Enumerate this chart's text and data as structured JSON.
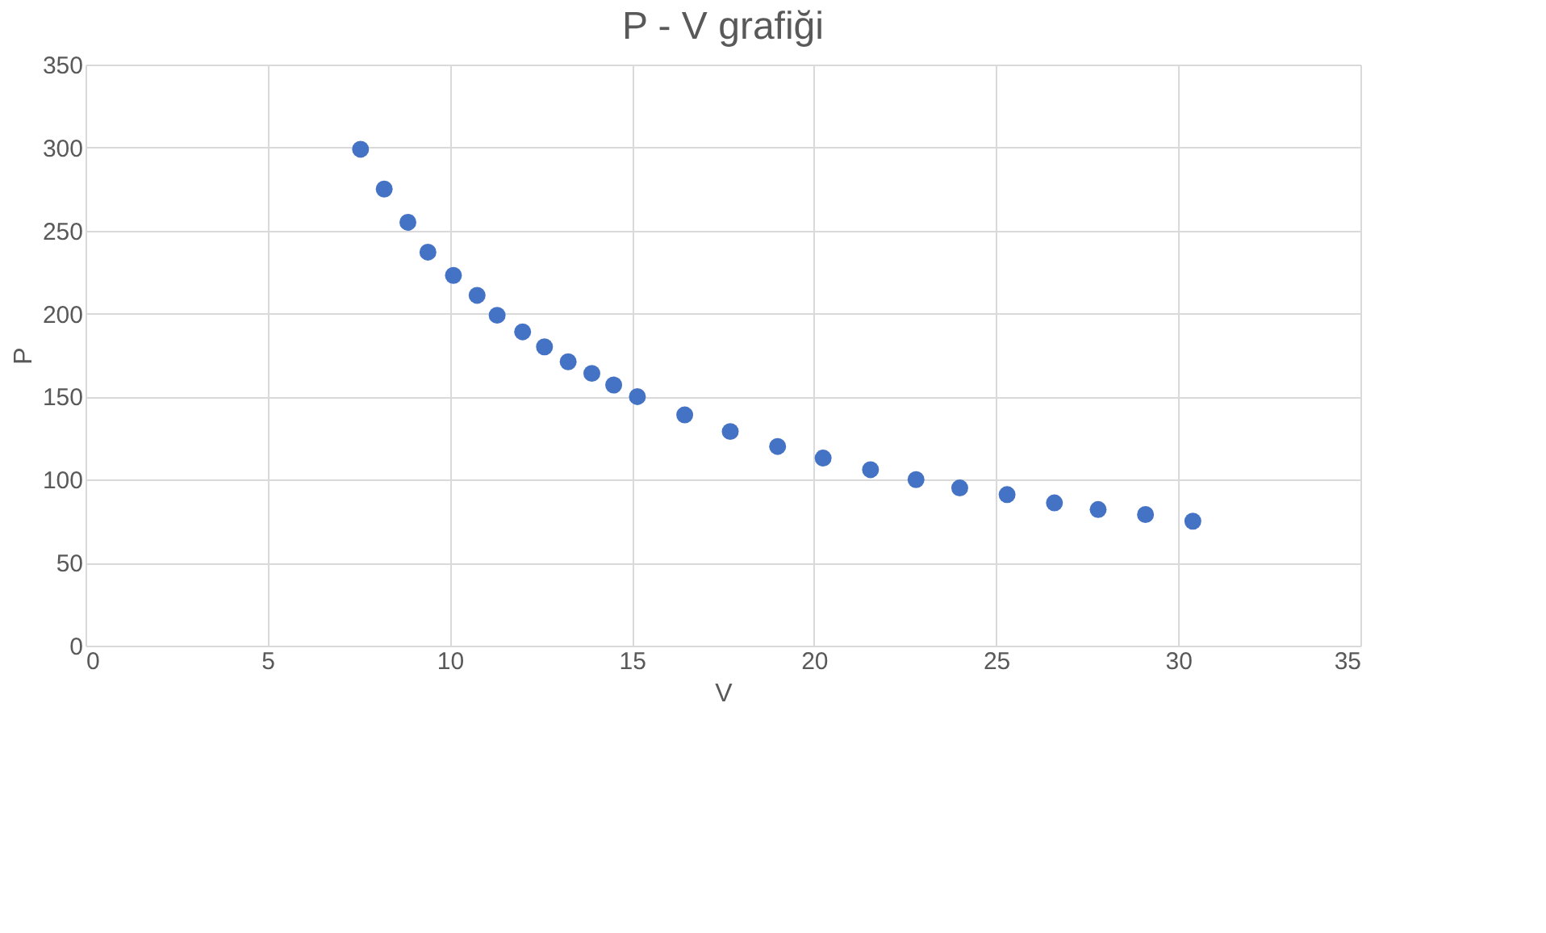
{
  "chart_data": {
    "type": "scatter",
    "title": "P - V grafiği",
    "xlabel": "V",
    "ylabel": "P",
    "x": [
      7.55,
      8.2,
      8.85,
      9.4,
      10.1,
      10.75,
      11.3,
      12.0,
      12.6,
      13.25,
      13.9,
      14.5,
      15.15,
      16.45,
      17.7,
      19.0,
      20.25,
      21.55,
      22.8,
      24.0,
      25.3,
      26.6,
      27.8,
      29.1,
      30.4
    ],
    "series": [
      {
        "color": "#4472c4",
        "values": [
          299,
          275,
          255,
          237,
          223,
          211,
          199,
          189,
          180,
          171,
          164,
          157,
          150,
          139,
          129,
          120,
          113,
          106,
          100,
          95,
          91,
          86,
          82,
          79,
          75
        ]
      }
    ],
    "xlim": [
      0,
      35
    ],
    "xticks": [
      0,
      5,
      10,
      15,
      20,
      25,
      30,
      35
    ],
    "ylim": [
      0,
      350
    ],
    "yticks": [
      0,
      50,
      100,
      150,
      200,
      250,
      300,
      350
    ],
    "grid": true,
    "marker": "circle"
  }
}
